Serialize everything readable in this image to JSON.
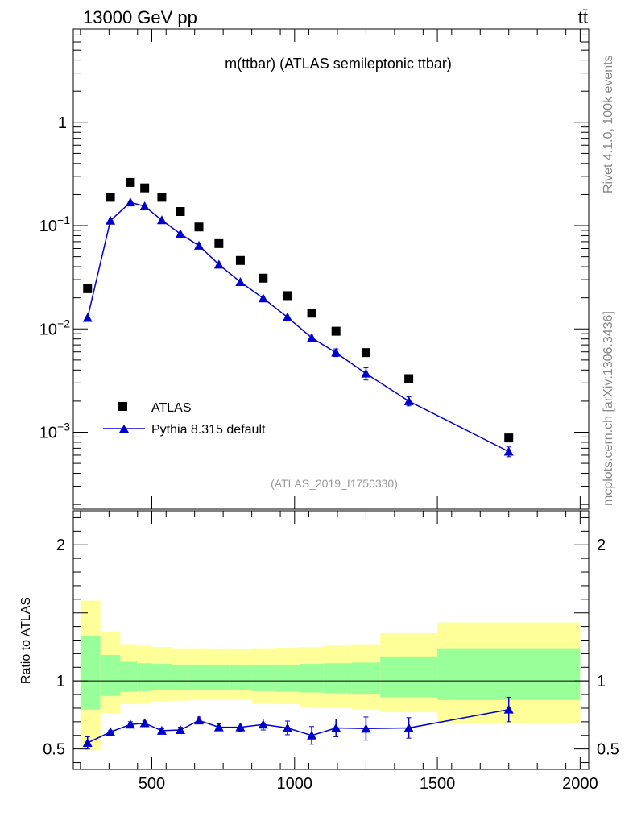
{
  "header": {
    "energy_label": "13000 GeV pp",
    "process_label": "tt̄"
  },
  "side_labels": {
    "rivet": "Rivet 4.1.0,  100k events",
    "mcplots": "mcplots.cern.ch [arXiv:1306.3436]"
  },
  "chart_data": [
    {
      "type": "scatter",
      "title": "m(ttbar) (ATLAS semileptonic ttbar)",
      "analysis_id": "(ATLAS_2019_I1750330)",
      "yscale": "log",
      "ylim": [
        0.00018,
        8
      ],
      "xlim": [
        225,
        2030
      ],
      "ytick_labels": [
        "1",
        "10",
        "10",
        "10"
      ],
      "ytick_exponents": [
        "",
        "−1",
        "−2",
        "−3"
      ],
      "legend_position": "bottom-left",
      "series": [
        {
          "name": "ATLAS",
          "marker": "square",
          "color": "#000000",
          "x": [
            275,
            355,
            425,
            475,
            535,
            600,
            665,
            735,
            810,
            890,
            975,
            1060,
            1145,
            1250,
            1400,
            1750
          ],
          "y": [
            0.0245,
            0.188,
            0.262,
            0.232,
            0.188,
            0.137,
            0.097,
            0.067,
            0.046,
            0.031,
            0.021,
            0.0142,
            0.0095,
            0.0059,
            0.0033,
            0.00088
          ]
        },
        {
          "name": "Pythia 8.315 default",
          "marker": "triangle",
          "color": "#0000cc",
          "x": [
            275,
            355,
            425,
            475,
            535,
            600,
            665,
            735,
            810,
            890,
            975,
            1060,
            1145,
            1250,
            1400,
            1750
          ],
          "y": [
            0.0128,
            0.112,
            0.168,
            0.154,
            0.113,
            0.083,
            0.064,
            0.042,
            0.0285,
            0.0198,
            0.013,
            0.0082,
            0.0059,
            0.0037,
            0.002,
            0.00065
          ],
          "yerr": [
            0,
            0,
            0,
            0,
            0,
            0,
            0,
            0,
            0,
            0,
            0,
            0.0007,
            0.0005,
            0.0005,
            0.0002,
            7e-05
          ]
        }
      ]
    },
    {
      "type": "scatter",
      "ylabel": "Ratio to ATLAS",
      "xlabel": "",
      "ylim": [
        0.35,
        2.25
      ],
      "xlim": [
        225,
        2030
      ],
      "x_ticks": [
        500,
        1000,
        1500,
        2000
      ],
      "x_tick_labels": [
        "500",
        "1000",
        "1500",
        "2000"
      ],
      "y_ticks": [
        0.5,
        1,
        2
      ],
      "y_tick_labels": [
        "0.5",
        "1",
        "2"
      ],
      "reference": 1,
      "bands": [
        {
          "x0": 250,
          "x1": 320,
          "inner_lo": 0.79,
          "inner_hi": 1.33,
          "outer_lo": 0.49,
          "outer_hi": 1.59
        },
        {
          "x0": 320,
          "x1": 390,
          "inner_lo": 0.89,
          "inner_hi": 1.19,
          "outer_lo": 0.76,
          "outer_hi": 1.36
        },
        {
          "x0": 390,
          "x1": 450,
          "inner_lo": 0.92,
          "inner_hi": 1.14,
          "outer_lo": 0.83,
          "outer_hi": 1.27
        },
        {
          "x0": 450,
          "x1": 500,
          "inner_lo": 0.925,
          "inner_hi": 1.13,
          "outer_lo": 0.84,
          "outer_hi": 1.26
        },
        {
          "x0": 500,
          "x1": 570,
          "inner_lo": 0.93,
          "inner_hi": 1.125,
          "outer_lo": 0.85,
          "outer_hi": 1.25
        },
        {
          "x0": 570,
          "x1": 630,
          "inner_lo": 0.93,
          "inner_hi": 1.12,
          "outer_lo": 0.855,
          "outer_hi": 1.24
        },
        {
          "x0": 630,
          "x1": 700,
          "inner_lo": 0.935,
          "inner_hi": 1.12,
          "outer_lo": 0.86,
          "outer_hi": 1.24
        },
        {
          "x0": 700,
          "x1": 770,
          "inner_lo": 0.935,
          "inner_hi": 1.115,
          "outer_lo": 0.865,
          "outer_hi": 1.235
        },
        {
          "x0": 770,
          "x1": 850,
          "inner_lo": 0.935,
          "inner_hi": 1.115,
          "outer_lo": 0.865,
          "outer_hi": 1.235
        },
        {
          "x0": 850,
          "x1": 930,
          "inner_lo": 0.925,
          "inner_hi": 1.12,
          "outer_lo": 0.84,
          "outer_hi": 1.24
        },
        {
          "x0": 930,
          "x1": 1020,
          "inner_lo": 0.92,
          "inner_hi": 1.12,
          "outer_lo": 0.83,
          "outer_hi": 1.245
        },
        {
          "x0": 1020,
          "x1": 1100,
          "inner_lo": 0.915,
          "inner_hi": 1.125,
          "outer_lo": 0.81,
          "outer_hi": 1.25
        },
        {
          "x0": 1100,
          "x1": 1200,
          "inner_lo": 0.91,
          "inner_hi": 1.13,
          "outer_lo": 0.8,
          "outer_hi": 1.26
        },
        {
          "x0": 1200,
          "x1": 1300,
          "inner_lo": 0.905,
          "inner_hi": 1.135,
          "outer_lo": 0.79,
          "outer_hi": 1.27
        },
        {
          "x0": 1300,
          "x1": 1500,
          "inner_lo": 0.88,
          "inner_hi": 1.18,
          "outer_lo": 0.77,
          "outer_hi": 1.35
        },
        {
          "x0": 1500,
          "x1": 2000,
          "inner_lo": 0.86,
          "inner_hi": 1.24,
          "outer_lo": 0.69,
          "outer_hi": 1.43
        }
      ],
      "series": [
        {
          "name": "Pythia 8.315 default / ATLAS",
          "marker": "triangle",
          "color": "#0000cc",
          "x": [
            275,
            355,
            425,
            475,
            535,
            600,
            665,
            735,
            810,
            890,
            975,
            1060,
            1145,
            1250,
            1400,
            1750
          ],
          "y": [
            0.545,
            0.625,
            0.68,
            0.69,
            0.635,
            0.64,
            0.71,
            0.66,
            0.66,
            0.68,
            0.655,
            0.6,
            0.655,
            0.65,
            0.655,
            0.79
          ],
          "yerr": [
            0.045,
            0.01,
            0.02,
            0.015,
            0.015,
            0.02,
            0.025,
            0.025,
            0.03,
            0.04,
            0.05,
            0.065,
            0.065,
            0.085,
            0.075,
            0.09
          ]
        }
      ]
    }
  ]
}
